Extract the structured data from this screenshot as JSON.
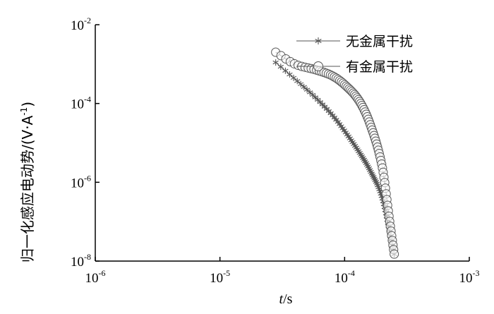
{
  "chart_data": {
    "type": "scatter",
    "xscale": "log",
    "yscale": "log",
    "xlim": [
      1e-06,
      0.001
    ],
    "ylim": [
      1e-08,
      0.01
    ],
    "x_ticks": [
      {
        "base": "10",
        "exp": "-6"
      },
      {
        "base": "10",
        "exp": "-5"
      },
      {
        "base": "10",
        "exp": "-4"
      },
      {
        "base": "10",
        "exp": "-3"
      }
    ],
    "y_ticks": [
      {
        "base": "10",
        "exp": "-8"
      },
      {
        "base": "10",
        "exp": "-6"
      },
      {
        "base": "10",
        "exp": "-4"
      },
      {
        "base": "10",
        "exp": "-2"
      }
    ],
    "xlabel": {
      "italic": "t",
      "rest": "/s"
    },
    "ylabel": {
      "main": "归一化感应电动势/(V·A",
      "sup": "-1",
      "close": ")"
    },
    "legend_position": "top-right",
    "grid": false,
    "series": [
      {
        "name": "无金属干扰",
        "marker": "asterisk",
        "color": "#555555",
        "x": [
          2.8e-05,
          3.5e-05,
          4.5e-05,
          6e-05,
          8e-05,
          0.0001,
          0.00013,
          0.00016,
          0.0002,
          0.00025
        ],
        "y": [
          0.0011,
          0.0006,
          0.0003,
          0.00013,
          5e-05,
          2e-05,
          6e-06,
          2e-06,
          4e-07,
          1.5e-08
        ]
      },
      {
        "name": "有金属干扰",
        "marker": "circle",
        "color": "#555555",
        "x": [
          2.8e-05,
          4e-05,
          6e-05,
          8e-05,
          0.0001,
          0.00013,
          0.00016,
          0.0002,
          0.00023,
          0.00025
        ],
        "y": [
          0.002,
          0.001,
          0.0007,
          0.0005,
          0.0003,
          0.00012,
          3e-05,
          2.5e-06,
          1e-07,
          1.5e-08
        ]
      }
    ]
  }
}
